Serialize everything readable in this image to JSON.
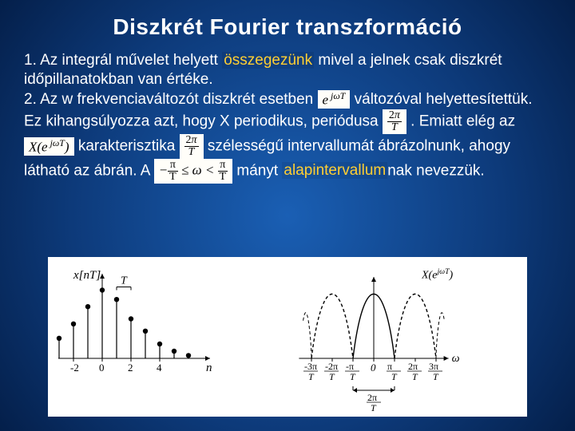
{
  "title": "Diszkrét Fourier transzformáció",
  "text": {
    "p1a": "1. Az integrál művelet helyett ",
    "p1b": "összegezünk",
    "p1c": " mivel a jelnek csak diszkrét időpillanatokban van értéke.",
    "p2a": "2. Az w frekvenciaváltozót diszkrét esetben ",
    "p2b": " változóval helyettesítettük. Ez kihangsúlyozza azt, hogy X periodikus, periódusa ",
    "p2c": ". Emiatt elég az ",
    "p2d": " karakterisztika ",
    "p2e": " szélességű intervallumát ábrázolnunk, ahogy látható az ábrán. A ",
    "p2f": " mányt ",
    "p2g": "alapintervallum",
    "p2h": "nak nevezzük."
  },
  "math": {
    "ejwt": "e<sup> jωT</sup>",
    "twoPiT": "2π / T",
    "XejwT": "X(e<sup> jωT</sup>)",
    "range_lhs_n": "π",
    "range_lhs_d": "T",
    "range_rhs_n": "π",
    "range_rhs_d": "T",
    "range_mid": "≤ ω <",
    "range_neg": "−"
  },
  "figure": {
    "background": "#ffffff",
    "stroke": "#000000",
    "left": {
      "ylabel": "x[nT]",
      "Tlabel": "T",
      "xlabel": "n",
      "ticks": [
        "-2",
        "0",
        "2",
        "4"
      ],
      "samples": [
        {
          "n": -3,
          "v": 0.28
        },
        {
          "n": -2,
          "v": 0.48
        },
        {
          "n": -1,
          "v": 0.72
        },
        {
          "n": 0,
          "v": 0.95
        },
        {
          "n": 1,
          "v": 0.82
        },
        {
          "n": 2,
          "v": 0.55
        },
        {
          "n": 3,
          "v": 0.38
        },
        {
          "n": 4,
          "v": 0.2
        },
        {
          "n": 5,
          "v": 0.1
        },
        {
          "n": 6,
          "v": 0.04
        }
      ],
      "ymax": 1.0
    },
    "right": {
      "ylabel": "X(e^{jωT})",
      "xlabel": "ω",
      "ticks": [
        {
          "num": "-3π",
          "den": "T"
        },
        {
          "num": "-2π",
          "den": "T"
        },
        {
          "num": "-π",
          "den": "T"
        },
        {
          "num": "0",
          "den": null
        },
        {
          "num": "π",
          "den": "T"
        },
        {
          "num": "2π",
          "den": "T"
        },
        {
          "num": "3π",
          "den": "T"
        }
      ],
      "main_lobe_color": "#000000",
      "side_lobe_dash": "4,3",
      "bracket_label_num": "2π",
      "bracket_label_den": "T"
    }
  },
  "style": {
    "title_fontsize": 28,
    "body_fontsize": 19,
    "highlight_color": "#ffcf33",
    "mathbox_bg": "#fffef9"
  }
}
